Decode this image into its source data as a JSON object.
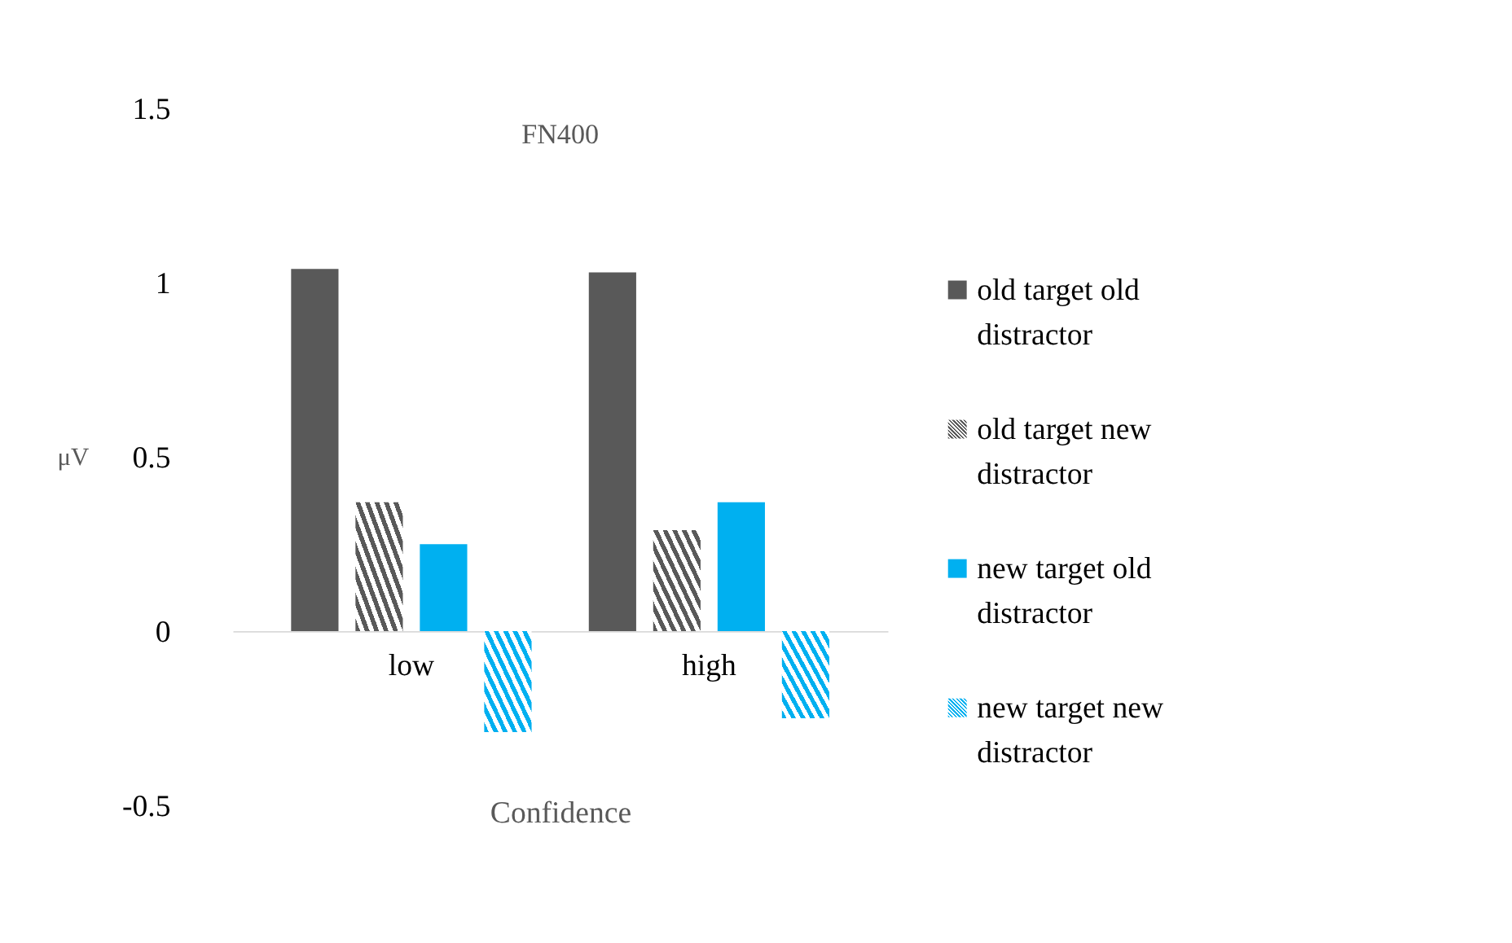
{
  "chart_data": {
    "type": "bar",
    "title": "FN400",
    "xlabel": "Confidence",
    "ylabel": "μV",
    "categories": [
      "low",
      "high"
    ],
    "series": [
      {
        "name": "old target old distractor",
        "color": "#595959",
        "values": [
          1.04,
          1.03
        ]
      },
      {
        "name": "old target new distractor",
        "color": "#595959",
        "values": [
          0.37,
          0.29
        ]
      },
      {
        "name": "new target old distractor",
        "color": "#00b0f0",
        "values": [
          0.25,
          0.37
        ]
      },
      {
        "name": "new target new distractor",
        "color": "#00b0f0",
        "values": [
          -0.29,
          -0.25
        ]
      }
    ],
    "ylim": [
      -0.5,
      1.5
    ],
    "yticks": [
      -0.5,
      0,
      0.5,
      1,
      1.5
    ],
    "grid": false,
    "legend": "right"
  }
}
